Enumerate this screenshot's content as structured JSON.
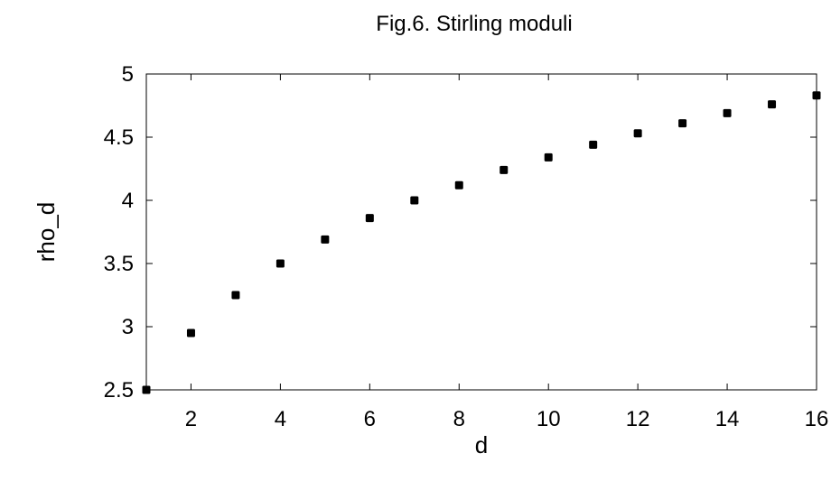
{
  "chart_data": {
    "type": "scatter",
    "title": "Fig.6. Stirling moduli",
    "xlabel": "d",
    "ylabel": "rho_d",
    "xlim": [
      1,
      16
    ],
    "ylim": [
      2.5,
      5
    ],
    "xticks": [
      2,
      4,
      6,
      8,
      10,
      12,
      14,
      16
    ],
    "yticks": [
      2.5,
      3,
      3.5,
      4,
      4.5,
      5
    ],
    "xtick_labels": [
      "2",
      "4",
      "6",
      "8",
      "10",
      "12",
      "14",
      "16"
    ],
    "ytick_labels": [
      "2.5",
      "3",
      "3.5",
      "4",
      "4.5",
      "5"
    ],
    "grid": false,
    "marker_color": "#000000",
    "series": [
      {
        "x": [
          1,
          2,
          3,
          4,
          5,
          6,
          7,
          8,
          9,
          10,
          11,
          12,
          13,
          14,
          15,
          16
        ],
        "y": [
          2.5,
          2.95,
          3.25,
          3.5,
          3.69,
          3.86,
          4.0,
          4.12,
          4.24,
          4.34,
          4.44,
          4.53,
          4.61,
          4.69,
          4.76,
          4.83
        ]
      }
    ]
  }
}
